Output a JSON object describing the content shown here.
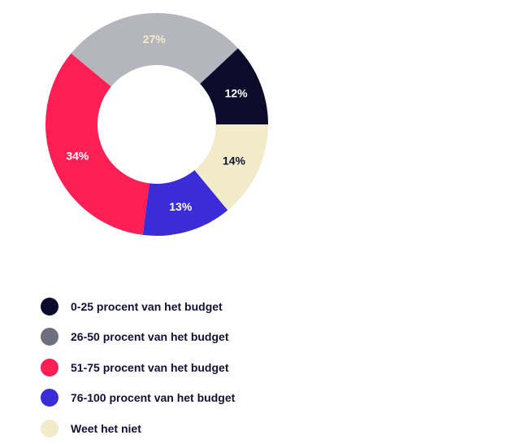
{
  "chart_data": {
    "type": "pie",
    "donut": true,
    "unit": "%",
    "slices": [
      {
        "label": "0-25 procent van het budget",
        "value": 12,
        "display": "12%",
        "color": "#0c0b2b",
        "text_color": "#ffffff"
      },
      {
        "label": "26-50 procent van het budget",
        "value": 27,
        "display": "27%",
        "color": "#b4b5bd",
        "text_color": "#f4ecc6"
      },
      {
        "label": "51-75 procent van het budget",
        "value": 34,
        "display": "34%",
        "color": "#ff1f55",
        "text_color": "#ffffff"
      },
      {
        "label": "76-100 procent van het budget",
        "value": 13,
        "display": "13%",
        "color": "#3a2cd6",
        "text_color": "#ffffff"
      },
      {
        "label": "Weet het niet",
        "value": 14,
        "display": "14%",
        "color": "#f1ebc9",
        "text_color": "#111133"
      }
    ],
    "legend": {
      "placement": "bottom-left",
      "entries": [
        {
          "label": "0-25 procent van het budget",
          "color": "#0c0b2b"
        },
        {
          "label": "26-50 procent van het budget",
          "color": "#6e6e7f"
        },
        {
          "label": "51-75 procent van het budget",
          "color": "#ff1f55"
        },
        {
          "label": "76-100 procent van het budget",
          "color": "#3a2cd6"
        },
        {
          "label": "Weet het niet",
          "color": "#f1ebc9"
        }
      ]
    }
  }
}
